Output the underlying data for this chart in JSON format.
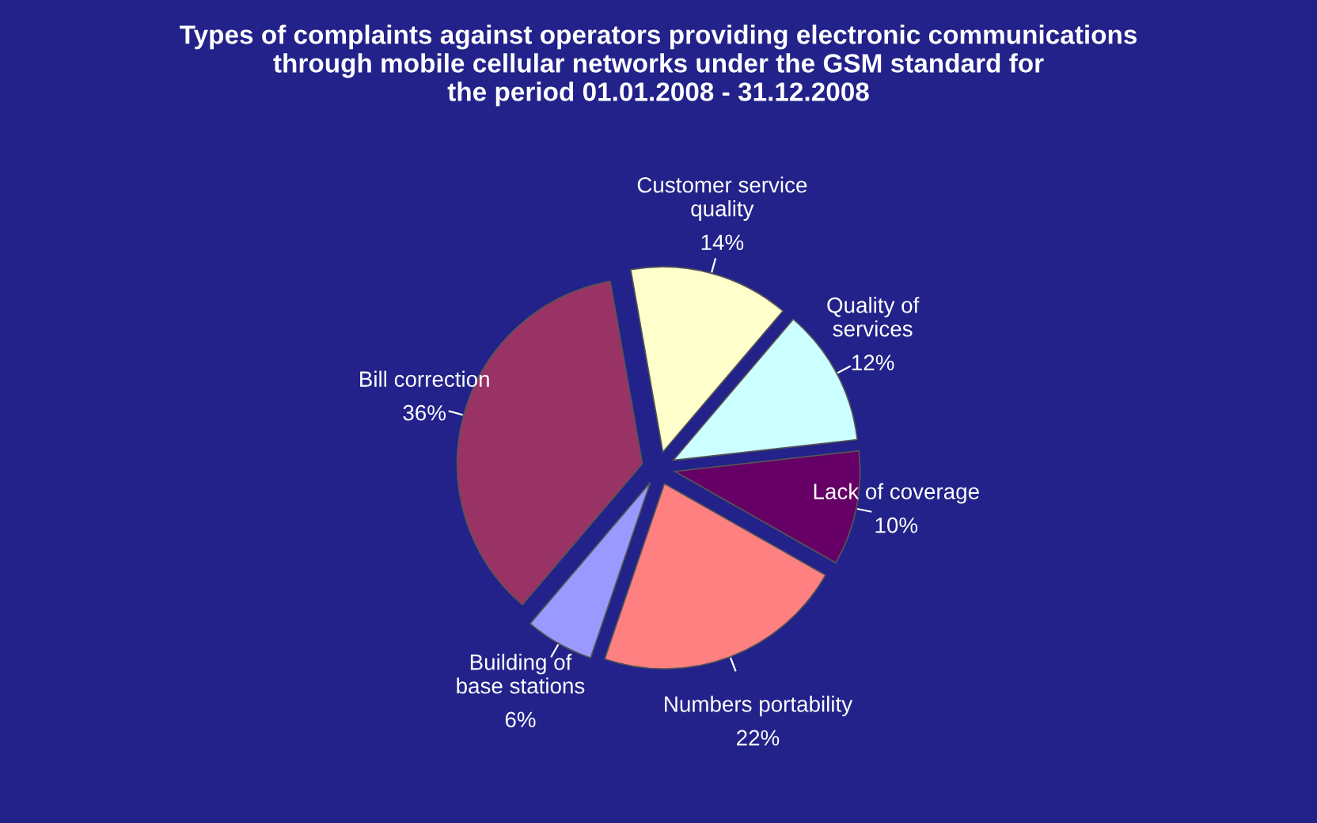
{
  "chart_data": {
    "type": "pie",
    "title": "Types of complaints against operators providing electronic communications\nthrough mobile cellular networks under the GSM standard for\nthe period 01.01.2008 - 31.12.2008",
    "categories": [
      "Customer service\nquality",
      "Quality of\nservices",
      "Lack of coverage",
      "Numbers portability",
      "Building of\nbase stations",
      "Bill correction"
    ],
    "values": [
      14,
      12,
      10,
      22,
      6,
      36
    ],
    "value_labels": [
      "14%",
      "12%",
      "10%",
      "22%",
      "6%",
      "36%"
    ],
    "colors": [
      "#ffffcc",
      "#ccffff",
      "#660066",
      "#ff8080",
      "#9999ff",
      "#993366"
    ],
    "legend": false
  }
}
